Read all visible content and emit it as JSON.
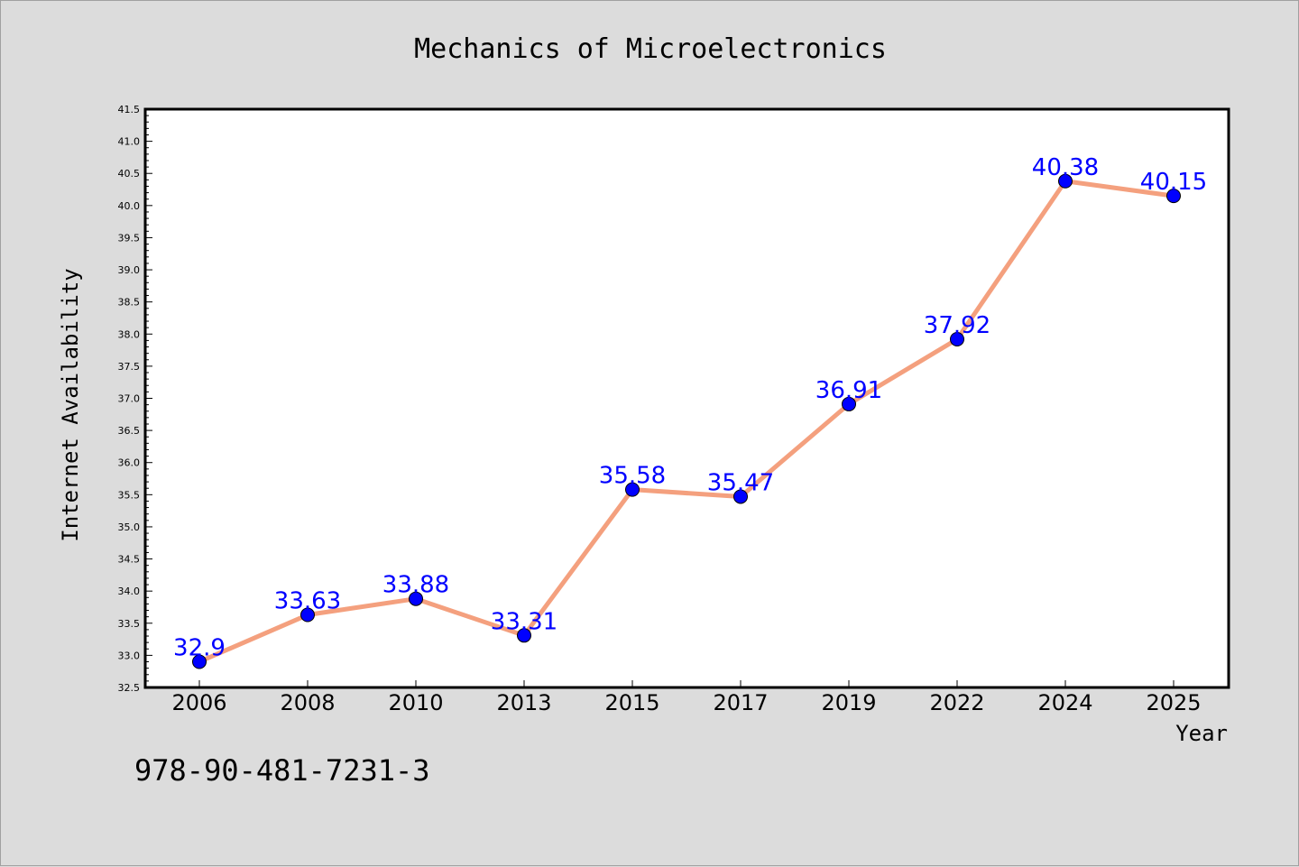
{
  "chart_data": {
    "type": "line",
    "title": "Mechanics of Microelectronics",
    "xlabel": "Year",
    "ylabel": "Internet Availability",
    "categories": [
      "2006",
      "2008",
      "2010",
      "2013",
      "2015",
      "2017",
      "2019",
      "2022",
      "2024",
      "2025"
    ],
    "values": [
      32.9,
      33.63,
      33.88,
      33.31,
      35.58,
      35.47,
      36.91,
      37.92,
      40.38,
      40.15
    ],
    "data_labels": [
      "32.9",
      "33.63",
      "33.88",
      "33.31",
      "35.58",
      "35.47",
      "36.91",
      "37.92",
      "40.38",
      "40.15"
    ],
    "ylim": [
      32.5,
      41.5
    ],
    "yticks": [
      "32.5",
      "33.0",
      "33.5",
      "34.0",
      "34.5",
      "35.0",
      "35.5",
      "36.0",
      "36.5",
      "37.0",
      "37.5",
      "38.0",
      "38.5",
      "39.0",
      "39.5",
      "40.0",
      "40.5",
      "41.0",
      "41.5"
    ],
    "grid": false,
    "line_color": "#f4a07e",
    "marker_color": "#0000ff",
    "label_color": "#0000ff"
  },
  "footer_text": "978-90-481-7231-3"
}
